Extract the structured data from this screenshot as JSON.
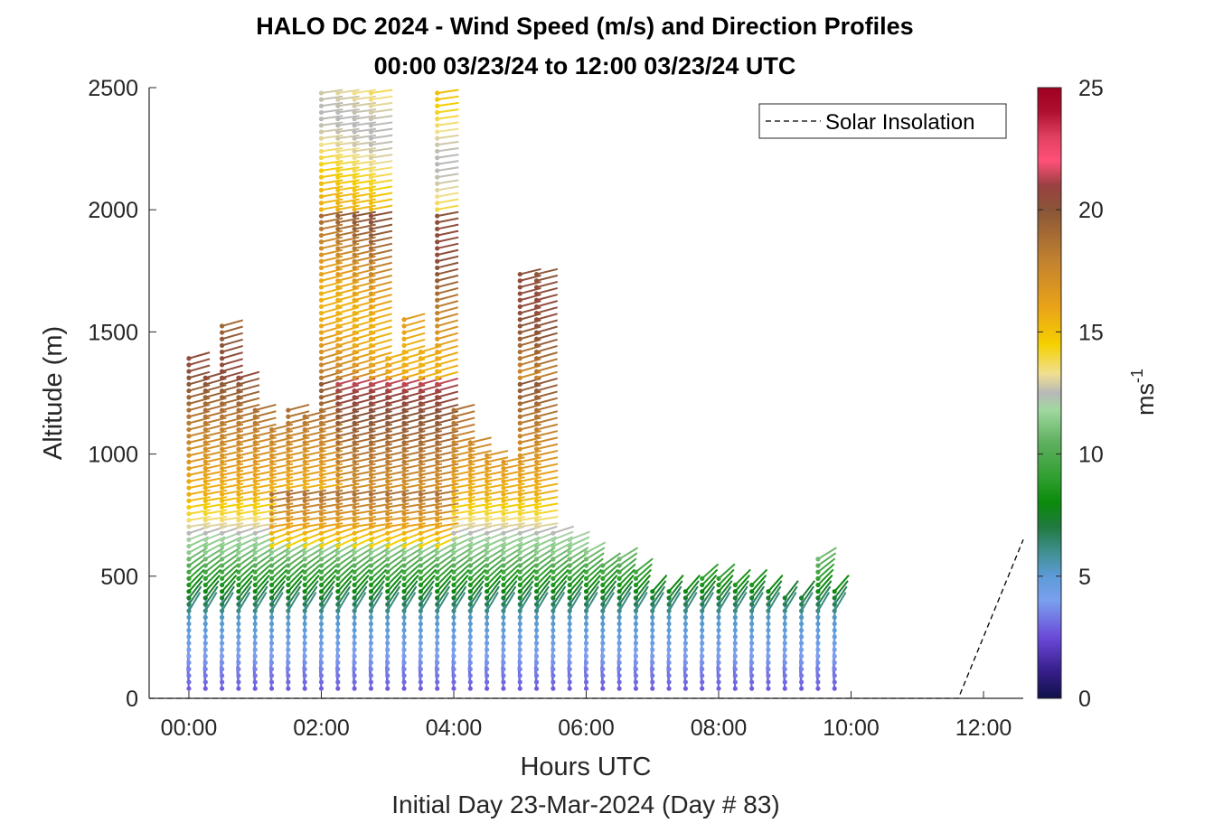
{
  "chart_data": {
    "type": "scatter",
    "title": "HALO DC 2024 - Wind Speed (m/s) and Direction Profiles",
    "subtitle": "00:00 03/23/24 to 12:00 03/23/24  UTC",
    "xlabel": "Hours UTC",
    "ylabel": "Altitude (m)",
    "footer": "Initial Day 23-Mar-2024 (Day # 83)",
    "xlim": [
      -0.6,
      12.6
    ],
    "ylim": [
      0,
      2500
    ],
    "x_ticks": [
      0,
      2,
      4,
      6,
      8,
      10,
      12
    ],
    "x_tick_labels": [
      "00:00",
      "02:00",
      "04:00",
      "06:00",
      "08:00",
      "10:00",
      "12:00"
    ],
    "y_ticks": [
      0,
      500,
      1000,
      1500,
      2000,
      2500
    ],
    "y_tick_labels": [
      "0",
      "500",
      "1000",
      "1500",
      "2000",
      "2500"
    ],
    "legend": {
      "label": "Solar Insolation",
      "position": "top-right",
      "style": "dashed black line"
    },
    "colorbar": {
      "label": "ms",
      "label_exponent": "-1",
      "range": [
        0,
        25
      ],
      "ticks": [
        0,
        5,
        10,
        15,
        20,
        25
      ],
      "tick_labels": [
        "0",
        "5",
        "10",
        "15",
        "20",
        "25"
      ],
      "colormap": [
        [
          0,
          "#10104a"
        ],
        [
          1.2,
          "#3a2090"
        ],
        [
          2.5,
          "#6a4ad8"
        ],
        [
          4,
          "#7aa0ee"
        ],
        [
          5,
          "#5d9bd8"
        ],
        [
          6,
          "#3f8f90"
        ],
        [
          7,
          "#207a40"
        ],
        [
          8,
          "#0a8a0a"
        ],
        [
          9,
          "#2f9f2f"
        ],
        [
          10.5,
          "#60b060"
        ],
        [
          11.8,
          "#a0d8a0"
        ],
        [
          12.5,
          "#b8b8b8"
        ],
        [
          13.3,
          "#f0e090"
        ],
        [
          14.5,
          "#f5d000"
        ],
        [
          16,
          "#eaa318"
        ],
        [
          18,
          "#c08030"
        ],
        [
          20,
          "#8a5538"
        ],
        [
          21,
          "#9a4040"
        ],
        [
          22,
          "#ff5078"
        ],
        [
          23,
          "#e04060"
        ],
        [
          24,
          "#b01030"
        ],
        [
          25,
          "#a00020"
        ]
      ]
    },
    "solar_insolation": [
      [
        -0.6,
        0
      ],
      [
        11.62,
        0
      ],
      [
        12.6,
        650
      ]
    ],
    "wind_profiles": {
      "description_fields": [
        "time_hours",
        "max_altitude_m"
      ],
      "profiles": [
        [
          0.0,
          1410
        ],
        [
          0.25,
          1320
        ],
        [
          0.5,
          1530
        ],
        [
          0.75,
          1320
        ],
        [
          1.0,
          1200
        ],
        [
          1.25,
          1120
        ],
        [
          1.5,
          1180
        ],
        [
          1.75,
          1160
        ],
        [
          2.0,
          2500
        ],
        [
          2.25,
          2500
        ],
        [
          2.5,
          2500
        ],
        [
          2.75,
          2500
        ],
        [
          3.0,
          1400
        ],
        [
          3.25,
          1560
        ],
        [
          3.5,
          1420
        ],
        [
          3.75,
          2500
        ],
        [
          4.0,
          1180
        ],
        [
          4.25,
          1060
        ],
        [
          4.5,
          1020
        ],
        [
          4.75,
          970
        ],
        [
          5.0,
          1750
        ],
        [
          5.25,
          1750
        ],
        [
          5.5,
          680
        ],
        [
          5.75,
          660
        ],
        [
          6.0,
          620
        ],
        [
          6.25,
          560
        ],
        [
          6.5,
          570
        ],
        [
          6.75,
          520
        ],
        [
          7.0,
          460
        ],
        [
          7.25,
          450
        ],
        [
          7.5,
          460
        ],
        [
          7.75,
          510
        ],
        [
          8.0,
          500
        ],
        [
          8.25,
          470
        ],
        [
          8.5,
          470
        ],
        [
          8.75,
          440
        ],
        [
          9.0,
          420
        ],
        [
          9.25,
          420
        ],
        [
          9.5,
          590
        ],
        [
          9.75,
          440
        ]
      ]
    }
  }
}
